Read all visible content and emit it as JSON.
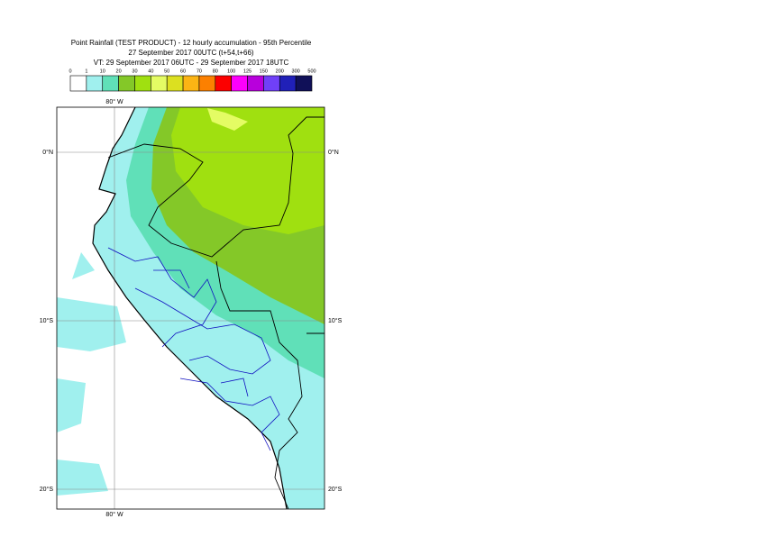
{
  "header": {
    "lines": [
      "Point Rainfall (TEST PRODUCT) - 12 hourly accumulation - 95th Percentile",
      "27 September 2017 00UTC (t+54,t+66)",
      "VT: 29 September 2017 06UTC - 29 September 2017 18UTC"
    ]
  },
  "legend": {
    "labels": [
      "0",
      "1",
      "10",
      "20",
      "30",
      "40",
      "50",
      "60",
      "70",
      "80",
      "100",
      "125",
      "150",
      "200",
      "300",
      "500"
    ],
    "colors": [
      "#ffffff",
      "#a0f0ee",
      "#60e0b8",
      "#84c828",
      "#a0e010",
      "#e4fc64",
      "#dce020",
      "#fcb414",
      "#fc8000",
      "#fc0000",
      "#fc00fc",
      "#b800dc",
      "#7040f8",
      "#2020b8",
      "#101058"
    ]
  },
  "map": {
    "lon_label": "80° W",
    "lat_labels": [
      "0°N",
      "10°S",
      "20°S"
    ]
  }
}
